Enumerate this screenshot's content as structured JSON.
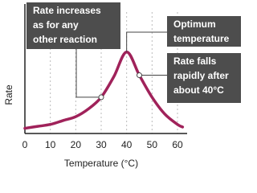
{
  "chart_data": {
    "type": "line",
    "x_label": "Temperature (°C)",
    "y_label": "Rate",
    "x": [
      0,
      5,
      10,
      15,
      20,
      25,
      30,
      35,
      40,
      45,
      50,
      55,
      60,
      62
    ],
    "series": [
      {
        "name": "Rate",
        "color": "#a0225a",
        "values": [
          4,
          5.5,
          7,
          10,
          13,
          19,
          28,
          44,
          63,
          45,
          28,
          15,
          7,
          5
        ]
      }
    ],
    "xlim": [
      0,
      60
    ],
    "xticks": [
      0,
      10,
      20,
      30,
      40,
      50,
      60
    ],
    "ylim": [
      0,
      100
    ],
    "grid": true,
    "annotations": [
      [
        "Rate increases",
        "as for any",
        "other reaction"
      ],
      [
        "Optimum",
        "temperature"
      ],
      [
        "Rate falls",
        "rapidly after",
        "about 40°C"
      ]
    ]
  }
}
